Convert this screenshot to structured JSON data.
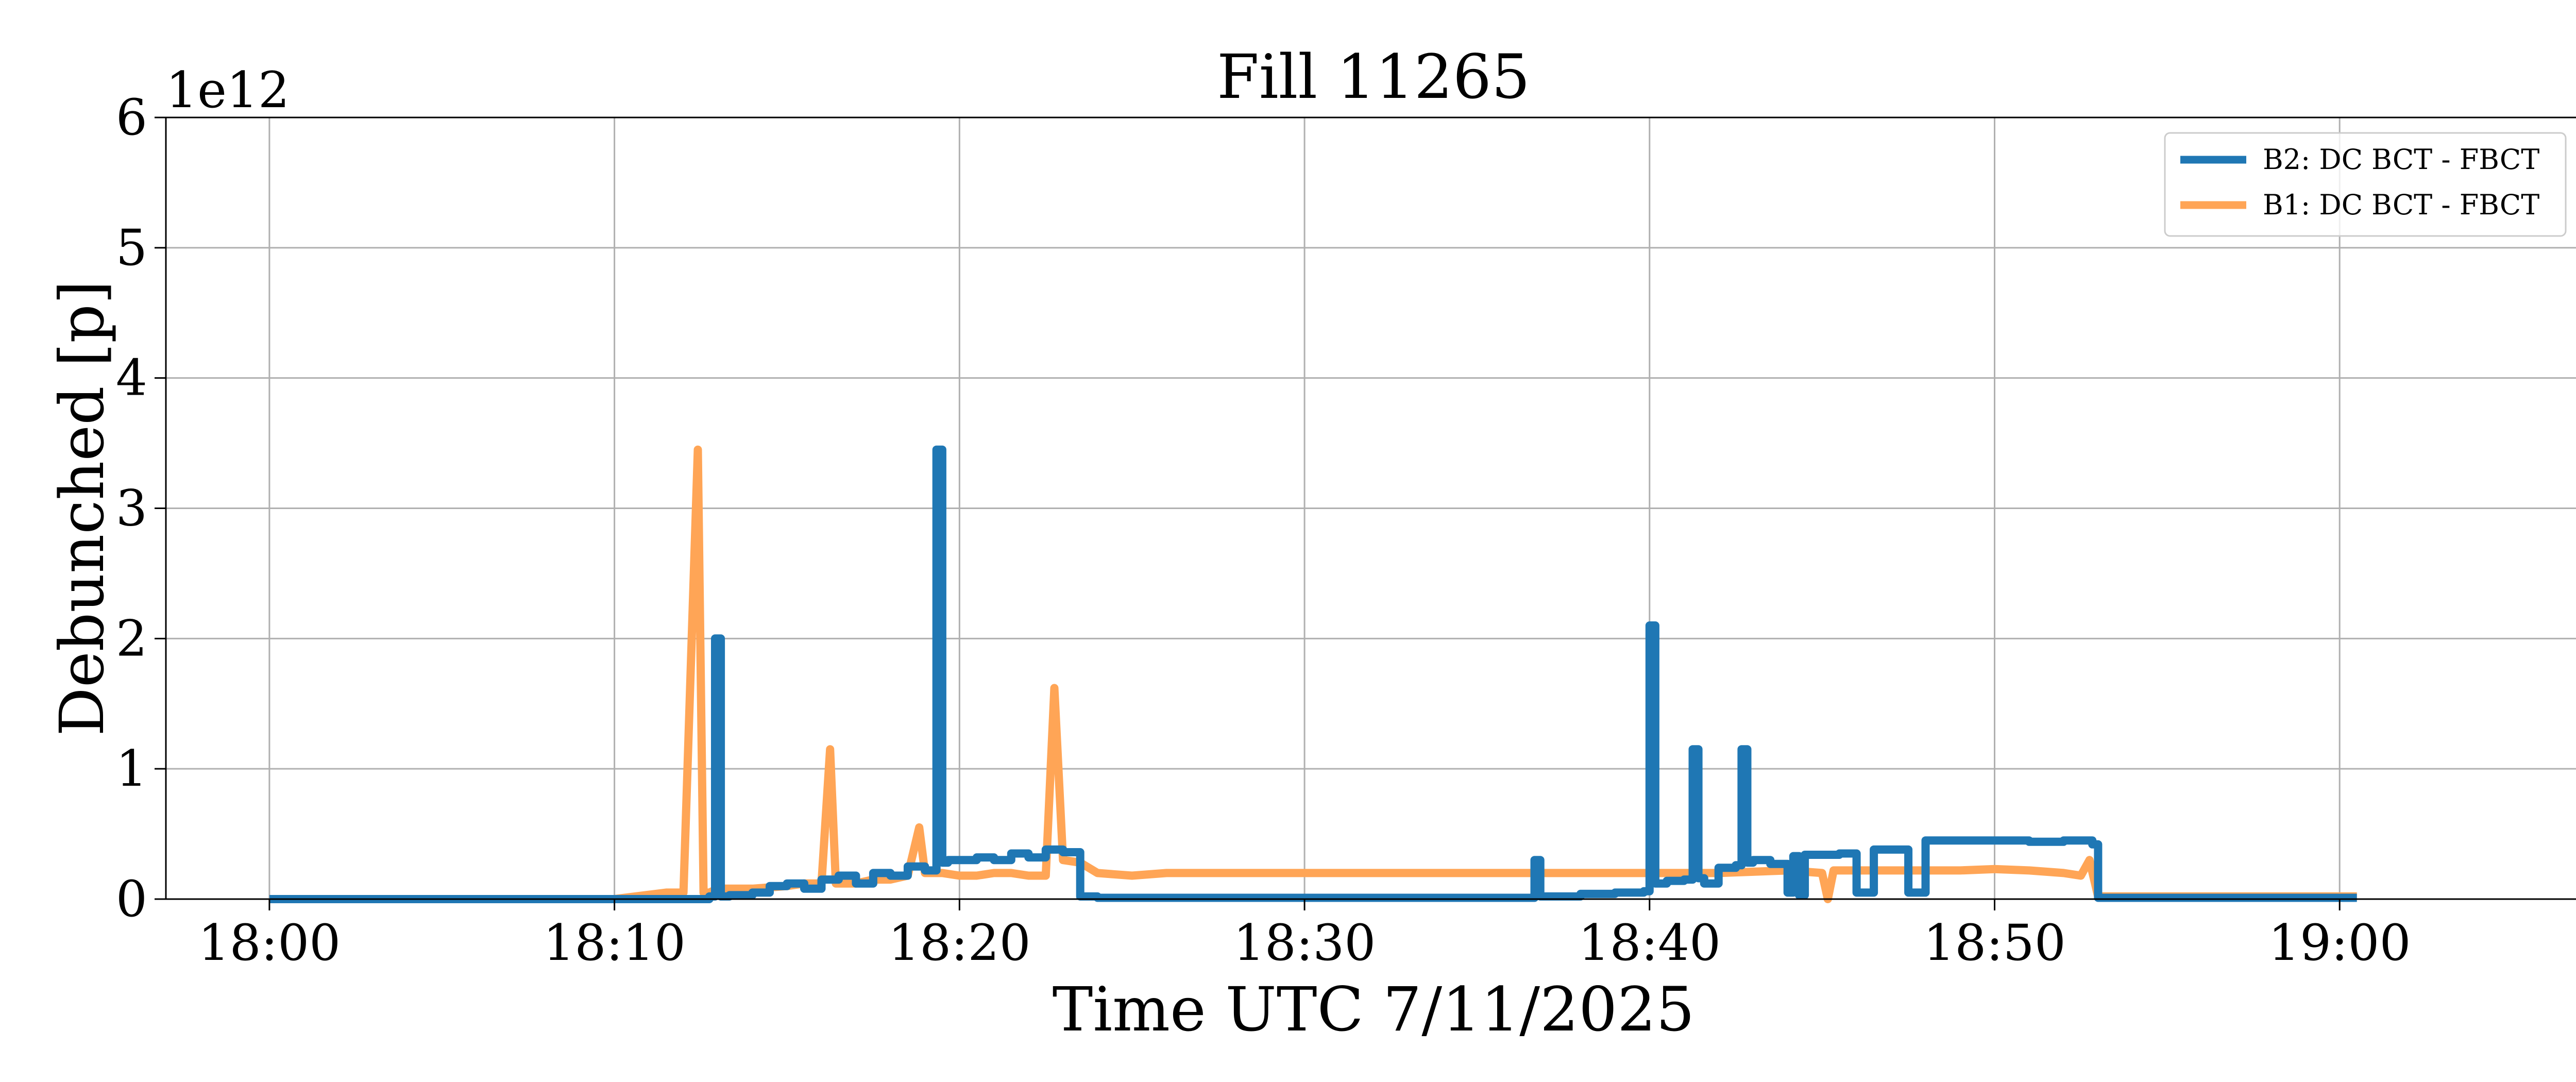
{
  "chart_data": {
    "type": "line",
    "title": "Fill 11265",
    "xlabel": "Time UTC 7/11/2025",
    "ylabel": "Debunched [p]",
    "y_offset_text": "1e12",
    "y_multiplier": 1000000000000.0,
    "xlim": [
      "17:57",
      "19:07"
    ],
    "ylim": [
      0,
      6
    ],
    "xticks": [
      "18:00",
      "18:10",
      "18:20",
      "18:30",
      "18:40",
      "18:50",
      "19:00"
    ],
    "yticks": [
      0,
      1,
      2,
      3,
      4,
      5,
      6
    ],
    "grid": true,
    "legend_position": "top-right",
    "series": [
      {
        "name": "B2: DC BCT - FBCT",
        "color": "#1f77b4",
        "step": true,
        "x": [
          "18:00",
          "18:11:30",
          "18:12:45",
          "18:12:55",
          "18:13:05",
          "18:13:20",
          "18:14",
          "18:14:30",
          "18:15",
          "18:15:30",
          "18:16",
          "18:16:30",
          "18:17",
          "18:17:30",
          "18:18",
          "18:18:30",
          "18:19",
          "18:19:20",
          "18:19:30",
          "18:19:40",
          "18:20",
          "18:20:30",
          "18:21",
          "18:21:30",
          "18:22",
          "18:22:30",
          "18:23",
          "18:23:30",
          "18:24",
          "18:30",
          "18:36",
          "18:36:40",
          "18:36:50",
          "18:37",
          "18:38",
          "18:39",
          "18:39:50",
          "18:40",
          "18:40:10",
          "18:40:30",
          "18:41",
          "18:41:15",
          "18:41:25",
          "18:41:35",
          "18:42",
          "18:42:30",
          "18:42:40",
          "18:42:50",
          "18:43",
          "18:43:30",
          "18:44",
          "18:44:10",
          "18:44:20",
          "18:44:30",
          "18:45",
          "18:45:30",
          "18:46",
          "18:46:30",
          "18:47",
          "18:47:30",
          "18:48",
          "18:49",
          "18:50",
          "18:51",
          "18:52",
          "18:52:50",
          "18:53",
          "19:00",
          "19:00:30"
        ],
        "values": [
          0,
          0,
          0.02,
          2.0,
          0.02,
          0.03,
          0.05,
          0.1,
          0.12,
          0.08,
          0.15,
          0.18,
          0.12,
          0.2,
          0.18,
          0.25,
          0.22,
          3.45,
          0.28,
          0.3,
          0.3,
          0.32,
          0.3,
          0.35,
          0.32,
          0.38,
          0.36,
          0.02,
          0.01,
          0.01,
          0.01,
          0.3,
          0.02,
          0.02,
          0.04,
          0.05,
          0.06,
          2.1,
          0.12,
          0.14,
          0.15,
          1.15,
          0.16,
          0.12,
          0.24,
          0.26,
          1.15,
          0.28,
          0.3,
          0.27,
          0.05,
          0.33,
          0.03,
          0.34,
          0.34,
          0.35,
          0.05,
          0.38,
          0.38,
          0.05,
          0.45,
          0.45,
          0.45,
          0.44,
          0.45,
          0.42,
          0.01,
          0.01,
          0.01
        ]
      },
      {
        "name": "B1: DC BCT - FBCT",
        "color": "#ffa556",
        "step": false,
        "x": [
          "18:00",
          "18:10",
          "18:11:30",
          "18:12",
          "18:12:25",
          "18:12:35",
          "18:12:45",
          "18:13",
          "18:14",
          "18:15",
          "18:15:30",
          "18:16",
          "18:16:15",
          "18:16:25",
          "18:17",
          "18:17:30",
          "18:18",
          "18:18:30",
          "18:18:50",
          "18:19",
          "18:19:30",
          "18:20",
          "18:20:30",
          "18:21",
          "18:21:30",
          "18:22",
          "18:22:30",
          "18:22:45",
          "18:23",
          "18:23:30",
          "18:24",
          "18:25",
          "18:26",
          "18:27",
          "18:28",
          "18:29",
          "18:30",
          "18:32",
          "18:34",
          "18:36",
          "18:38",
          "18:40",
          "18:42",
          "18:44",
          "18:45",
          "18:45:10",
          "18:45:20",
          "18:46",
          "18:47",
          "18:48",
          "18:49",
          "18:50",
          "18:51",
          "18:52",
          "18:52:30",
          "18:52:45",
          "18:53",
          "19:00",
          "19:00:30"
        ],
        "values": [
          0,
          0,
          0.05,
          0.05,
          3.45,
          0.05,
          0.05,
          0.08,
          0.08,
          0.1,
          0.12,
          0.12,
          1.15,
          0.12,
          0.12,
          0.15,
          0.15,
          0.18,
          0.55,
          0.2,
          0.2,
          0.18,
          0.18,
          0.2,
          0.2,
          0.18,
          0.18,
          1.62,
          0.3,
          0.28,
          0.2,
          0.18,
          0.2,
          0.2,
          0.2,
          0.2,
          0.2,
          0.2,
          0.2,
          0.2,
          0.2,
          0.2,
          0.2,
          0.22,
          0.2,
          0.0,
          0.22,
          0.22,
          0.22,
          0.22,
          0.22,
          0.23,
          0.22,
          0.2,
          0.18,
          0.3,
          0.02,
          0.02,
          0.02
        ]
      }
    ]
  }
}
